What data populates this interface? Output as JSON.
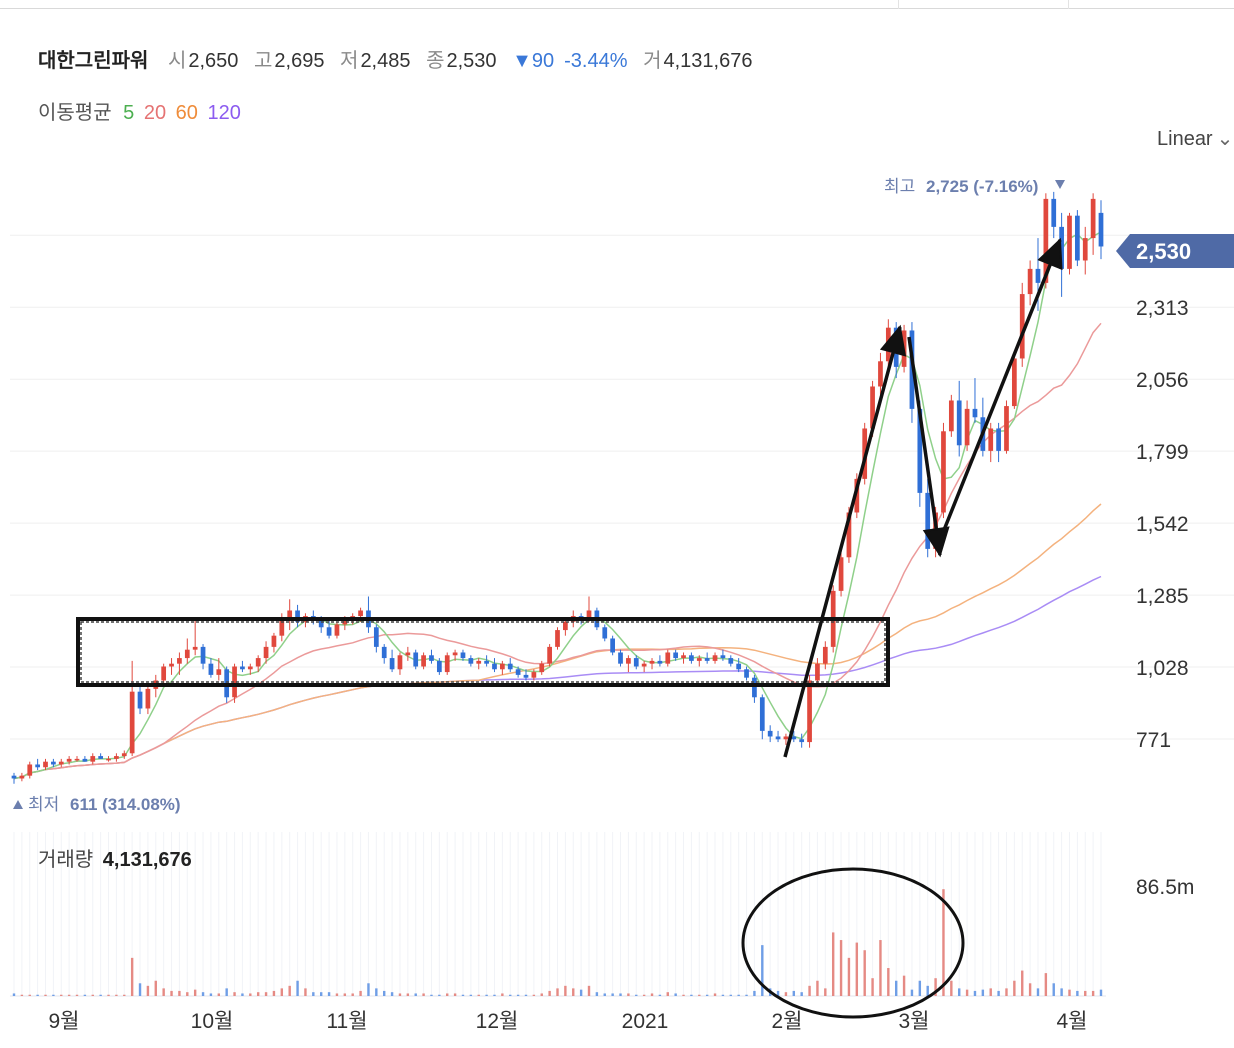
{
  "header": {
    "name": "대한그린파워",
    "open_label": "시",
    "open": "2,650",
    "high_label": "고",
    "high": "2,695",
    "low_label": "저",
    "low": "2,485",
    "close_label": "종",
    "close": "2,530",
    "change": "▼90",
    "change_pct": "-3.44%",
    "volume_label": "거",
    "volume": "4,131,676"
  },
  "moving_average": {
    "label": "이동평균",
    "periods": [
      {
        "period": "5",
        "color": "#4caf50"
      },
      {
        "period": "20",
        "color": "#e57373"
      },
      {
        "period": "60",
        "color": "#ef8c3a"
      },
      {
        "period": "120",
        "color": "#8c5cf0"
      }
    ]
  },
  "scale": {
    "label": "Linear",
    "icon": "chevron-down-icon"
  },
  "colors": {
    "up": "#e0483d",
    "down": "#2f6fd6",
    "badge": "#4f6aa6"
  },
  "chart_data": {
    "type": "candlestick",
    "price_axis": {
      "ticks": [
        "2,313",
        "2,056",
        "1,799",
        "1,542",
        "1,285",
        "1,028",
        "771"
      ],
      "tick_values": [
        2313,
        2056,
        1799,
        1542,
        1285,
        1028,
        771
      ],
      "range": [
        611,
        2725
      ]
    },
    "current_price_badge": "2,530",
    "highest": {
      "label": "최고",
      "value": "2,725",
      "pct": "(-7.16%)"
    },
    "lowest": {
      "label": "최저",
      "value": "611",
      "pct": "(314.08%)"
    },
    "x_axis": {
      "labels": [
        "9월",
        "10월",
        "11월",
        "12월",
        "2021",
        "2월",
        "3월",
        "4월"
      ]
    },
    "ohlc_approx": [
      [
        640,
        650,
        611,
        630
      ],
      [
        630,
        650,
        620,
        640
      ],
      [
        640,
        690,
        630,
        680
      ],
      [
        680,
        700,
        660,
        670
      ],
      [
        670,
        700,
        660,
        690
      ],
      [
        690,
        700,
        670,
        680
      ],
      [
        680,
        700,
        670,
        690
      ],
      [
        690,
        710,
        680,
        700
      ],
      [
        700,
        710,
        690,
        700
      ],
      [
        700,
        710,
        690,
        690
      ],
      [
        690,
        720,
        680,
        710
      ],
      [
        710,
        720,
        700,
        700
      ],
      [
        700,
        710,
        690,
        700
      ],
      [
        700,
        720,
        690,
        710
      ],
      [
        710,
        730,
        700,
        720
      ],
      [
        720,
        1050,
        710,
        940
      ],
      [
        940,
        960,
        860,
        880
      ],
      [
        880,
        960,
        860,
        950
      ],
      [
        950,
        1000,
        920,
        980
      ],
      [
        980,
        1040,
        960,
        1030
      ],
      [
        1030,
        1060,
        1000,
        1040
      ],
      [
        1040,
        1080,
        1000,
        1060
      ],
      [
        1060,
        1130,
        1040,
        1090
      ],
      [
        1090,
        1200,
        1070,
        1100
      ],
      [
        1100,
        1110,
        1020,
        1040
      ],
      [
        1040,
        1060,
        990,
        1000
      ],
      [
        1000,
        1060,
        980,
        1020
      ],
      [
        1020,
        1030,
        900,
        920
      ],
      [
        920,
        1040,
        900,
        1030
      ],
      [
        1030,
        1050,
        1010,
        1020
      ],
      [
        1020,
        1040,
        1000,
        1030
      ],
      [
        1030,
        1070,
        1010,
        1060
      ],
      [
        1060,
        1120,
        1040,
        1100
      ],
      [
        1100,
        1150,
        1080,
        1140
      ],
      [
        1140,
        1220,
        1120,
        1200
      ],
      [
        1200,
        1270,
        1160,
        1230
      ],
      [
        1230,
        1250,
        1170,
        1190
      ],
      [
        1190,
        1220,
        1170,
        1210
      ],
      [
        1210,
        1230,
        1180,
        1200
      ],
      [
        1200,
        1210,
        1150,
        1170
      ],
      [
        1170,
        1200,
        1130,
        1140
      ],
      [
        1140,
        1190,
        1130,
        1180
      ],
      [
        1180,
        1210,
        1160,
        1200
      ],
      [
        1200,
        1220,
        1180,
        1210
      ],
      [
        1210,
        1240,
        1190,
        1230
      ],
      [
        1230,
        1280,
        1150,
        1170
      ],
      [
        1170,
        1180,
        1080,
        1100
      ],
      [
        1100,
        1110,
        1040,
        1060
      ],
      [
        1060,
        1090,
        1010,
        1020
      ],
      [
        1020,
        1080,
        1000,
        1070
      ],
      [
        1070,
        1100,
        1050,
        1080
      ],
      [
        1080,
        1090,
        1020,
        1030
      ],
      [
        1030,
        1080,
        1020,
        1070
      ],
      [
        1070,
        1090,
        1040,
        1050
      ],
      [
        1050,
        1060,
        1000,
        1010
      ],
      [
        1010,
        1080,
        1000,
        1070
      ],
      [
        1070,
        1090,
        1050,
        1080
      ],
      [
        1080,
        1090,
        1050,
        1060
      ],
      [
        1060,
        1070,
        1030,
        1040
      ],
      [
        1040,
        1060,
        1020,
        1050
      ],
      [
        1050,
        1070,
        1030,
        1040
      ],
      [
        1040,
        1060,
        1010,
        1020
      ],
      [
        1020,
        1050,
        1000,
        1040
      ],
      [
        1040,
        1060,
        1010,
        1020
      ],
      [
        1020,
        1030,
        990,
        1000
      ],
      [
        1000,
        1020,
        980,
        990
      ],
      [
        990,
        1020,
        980,
        1010
      ],
      [
        1010,
        1050,
        1000,
        1040
      ],
      [
        1040,
        1110,
        1030,
        1100
      ],
      [
        1100,
        1170,
        1090,
        1160
      ],
      [
        1160,
        1200,
        1140,
        1190
      ],
      [
        1190,
        1230,
        1170,
        1210
      ],
      [
        1210,
        1220,
        1180,
        1200
      ],
      [
        1200,
        1280,
        1190,
        1230
      ],
      [
        1230,
        1240,
        1160,
        1170
      ],
      [
        1170,
        1180,
        1120,
        1130
      ],
      [
        1130,
        1140,
        1070,
        1080
      ],
      [
        1080,
        1090,
        1030,
        1040
      ],
      [
        1040,
        1070,
        1010,
        1060
      ],
      [
        1060,
        1070,
        1020,
        1030
      ],
      [
        1030,
        1050,
        1010,
        1040
      ],
      [
        1040,
        1060,
        1020,
        1050
      ],
      [
        1050,
        1070,
        1030,
        1040
      ],
      [
        1040,
        1090,
        1030,
        1080
      ],
      [
        1080,
        1090,
        1050,
        1060
      ],
      [
        1060,
        1080,
        1040,
        1070
      ],
      [
        1070,
        1080,
        1040,
        1050
      ],
      [
        1050,
        1070,
        1030,
        1060
      ],
      [
        1060,
        1080,
        1040,
        1050
      ],
      [
        1050,
        1080,
        1040,
        1070
      ],
      [
        1070,
        1090,
        1050,
        1060
      ],
      [
        1060,
        1070,
        1030,
        1040
      ],
      [
        1040,
        1060,
        1010,
        1020
      ],
      [
        1020,
        1030,
        980,
        990
      ],
      [
        990,
        1000,
        900,
        920
      ],
      [
        920,
        930,
        770,
        800
      ],
      [
        800,
        820,
        760,
        780
      ],
      [
        780,
        800,
        760,
        770
      ],
      [
        770,
        790,
        750,
        780
      ],
      [
        780,
        800,
        760,
        770
      ],
      [
        770,
        790,
        740,
        760
      ],
      [
        760,
        1000,
        740,
        980
      ],
      [
        980,
        1060,
        960,
        1040
      ],
      [
        1040,
        1120,
        1020,
        1100
      ],
      [
        1100,
        1320,
        1080,
        1300
      ],
      [
        1300,
        1450,
        1280,
        1420
      ],
      [
        1420,
        1600,
        1400,
        1580
      ],
      [
        1580,
        1720,
        1560,
        1700
      ],
      [
        1700,
        1900,
        1680,
        1880
      ],
      [
        1880,
        2050,
        1850,
        2030
      ],
      [
        2030,
        2150,
        2000,
        2120
      ],
      [
        2120,
        2270,
        2100,
        2240
      ],
      [
        2240,
        2260,
        2060,
        2100
      ],
      [
        2100,
        2250,
        2080,
        2230
      ],
      [
        2230,
        2260,
        1900,
        1950
      ],
      [
        1950,
        1980,
        1600,
        1650
      ],
      [
        1650,
        1700,
        1420,
        1450
      ],
      [
        1450,
        1600,
        1420,
        1580
      ],
      [
        1580,
        1900,
        1560,
        1870
      ],
      [
        1870,
        2000,
        1850,
        1980
      ],
      [
        1980,
        2050,
        1780,
        1820
      ],
      [
        1820,
        1980,
        1800,
        1950
      ],
      [
        1950,
        2060,
        1900,
        1920
      ],
      [
        1920,
        1990,
        1780,
        1800
      ],
      [
        1800,
        1900,
        1760,
        1880
      ],
      [
        1880,
        1900,
        1760,
        1800
      ],
      [
        1800,
        1980,
        1790,
        1960
      ],
      [
        1960,
        2150,
        1950,
        2130
      ],
      [
        2130,
        2400,
        2100,
        2360
      ],
      [
        2360,
        2480,
        2320,
        2450
      ],
      [
        2450,
        2560,
        2300,
        2400
      ],
      [
        2400,
        2720,
        2380,
        2700
      ],
      [
        2700,
        2725,
        2560,
        2600
      ],
      [
        2600,
        2650,
        2350,
        2450
      ],
      [
        2450,
        2650,
        2430,
        2640
      ],
      [
        2640,
        2660,
        2460,
        2480
      ],
      [
        2480,
        2600,
        2430,
        2560
      ],
      [
        2560,
        2720,
        2500,
        2700
      ],
      [
        2650,
        2695,
        2485,
        2530
      ]
    ],
    "volume": {
      "label": "거래량",
      "value": "4,131,676",
      "axis_max": "86.5m",
      "values_m": [
        2,
        1,
        1,
        1,
        1,
        1,
        1,
        1,
        1,
        1,
        1,
        1,
        1,
        1,
        1,
        30,
        10,
        8,
        12,
        6,
        4,
        4,
        3,
        5,
        3,
        2,
        2,
        6,
        3,
        2,
        2,
        3,
        3,
        4,
        6,
        8,
        12,
        6,
        3,
        3,
        3,
        2,
        2,
        2,
        4,
        10,
        6,
        4,
        3,
        2,
        2,
        2,
        2,
        1,
        1,
        2,
        2,
        1,
        1,
        1,
        1,
        1,
        2,
        1,
        1,
        1,
        1,
        2,
        4,
        6,
        8,
        6,
        5,
        8,
        3,
        2,
        2,
        2,
        2,
        1,
        1,
        2,
        1,
        3,
        2,
        1,
        1,
        1,
        1,
        2,
        1,
        1,
        1,
        1,
        4,
        40,
        6,
        4,
        3,
        4,
        3,
        8,
        12,
        6,
        50,
        44,
        30,
        42,
        36,
        14,
        44,
        22,
        12,
        16,
        5,
        12,
        8,
        14,
        84,
        12,
        6,
        5,
        4,
        5,
        6,
        4,
        6,
        12,
        20,
        10,
        6,
        18,
        10,
        6,
        5,
        4,
        4,
        4,
        5
      ]
    }
  }
}
